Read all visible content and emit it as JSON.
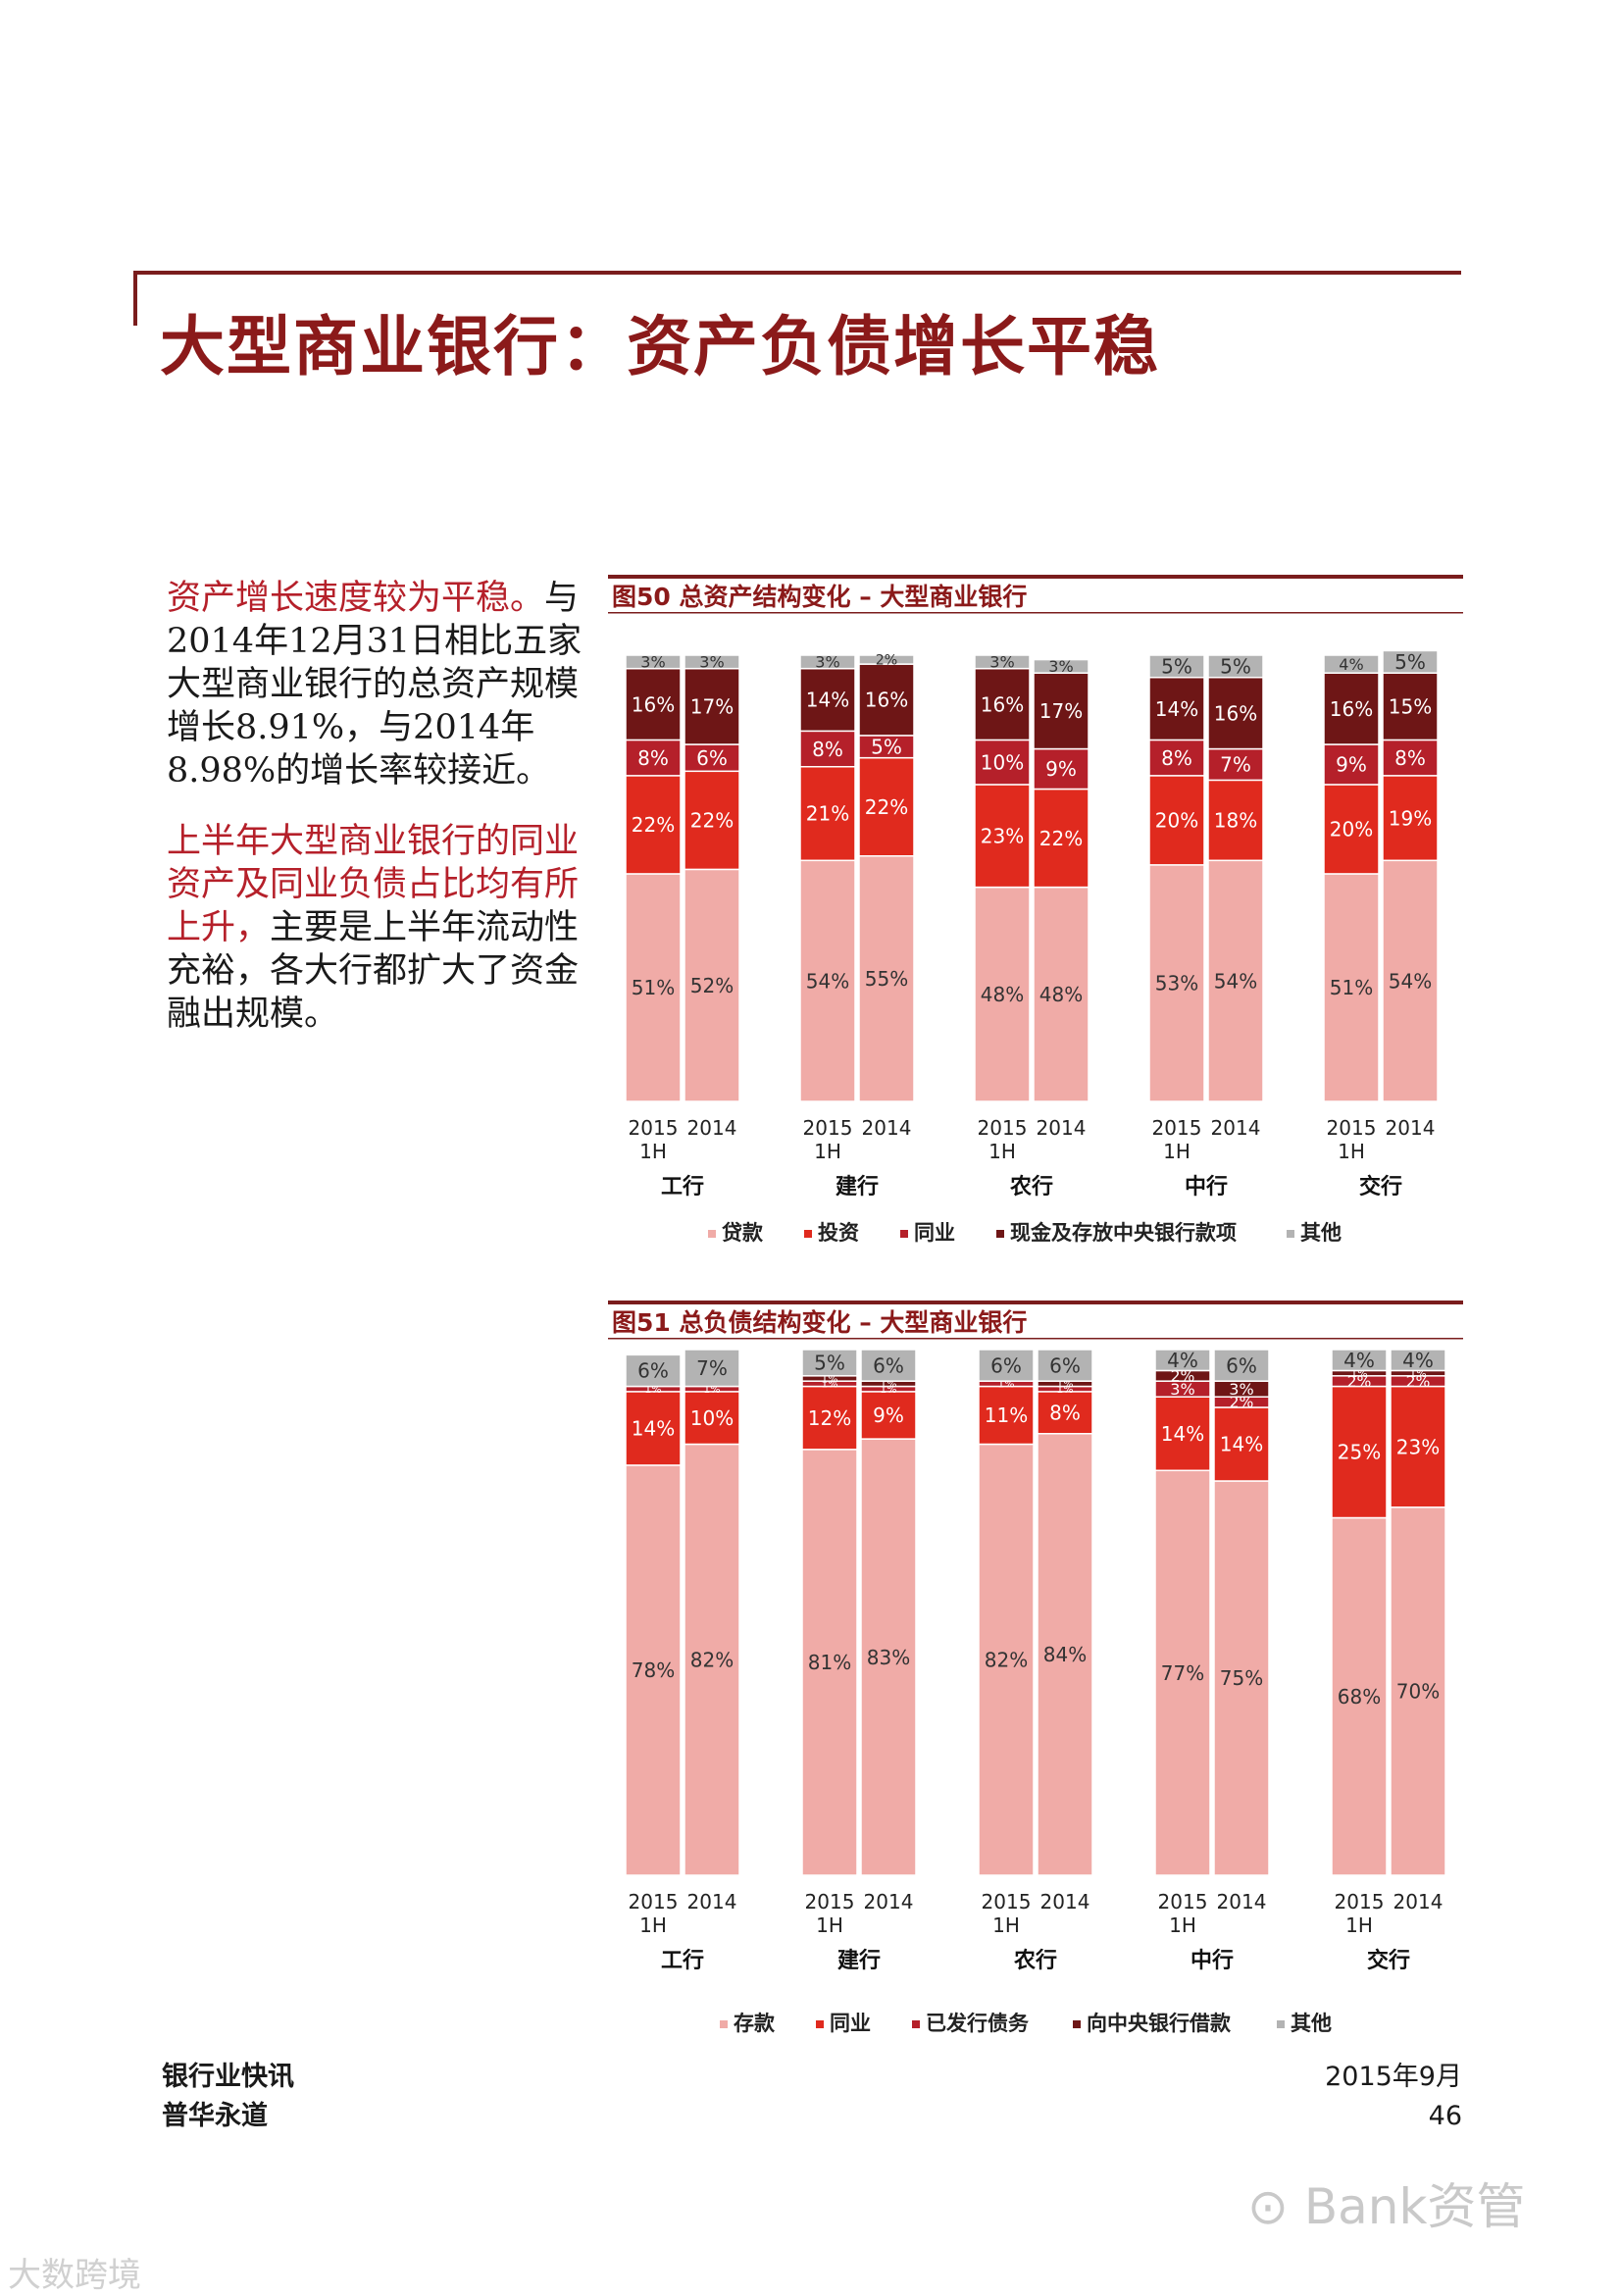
{
  "page_title": "大型商业银行：资产负债增长平稳",
  "side_text": {
    "p1_highlight": "资产增长速度较为平稳。",
    "p1_body": "与2014年12月31日相比五家大型商业银行的总资产规模增长8.91%，与2014年8.98%的增长率较接近。",
    "p2_highlight": "上半年大型商业银行的同业资产及同业负债占比均有所上升，",
    "p2_body": "主要是上半年流动性充裕，各大行都扩大了资金融出规模。"
  },
  "footer": {
    "left_line1": "银行业快讯",
    "left_line2": "普华永道",
    "date": "2015年9月",
    "page_number": "46"
  },
  "watermarks": {
    "right": "Bank资管",
    "left": "大数跨境"
  },
  "colors": {
    "title_red": "#8b1a1a",
    "rule": "#7a1d1d",
    "segment_light": "#f0aba7",
    "segment_red": "#e02a1e",
    "segment_crimson": "#b5202a",
    "segment_dark": "#6e1616",
    "segment_gray": "#b3b3b3"
  },
  "chart_data": [
    {
      "type": "bar",
      "stacked": true,
      "title": "图50  总资产结构变化 – 大型商业银行",
      "groups": [
        "工行",
        "建行",
        "农行",
        "中行",
        "交行"
      ],
      "x_labels": [
        "2015\n1H",
        "2014"
      ],
      "series": [
        {
          "name": "贷款",
          "color": "#f0aba7",
          "values": [
            [
              51,
              52
            ],
            [
              54,
              55
            ],
            [
              48,
              48
            ],
            [
              53,
              54
            ],
            [
              51,
              54
            ]
          ]
        },
        {
          "name": "投资",
          "color": "#e02a1e",
          "values": [
            [
              22,
              22
            ],
            [
              21,
              22
            ],
            [
              23,
              22
            ],
            [
              20,
              18
            ],
            [
              20,
              19
            ]
          ]
        },
        {
          "name": "同业",
          "color": "#b5202a",
          "values": [
            [
              8,
              6
            ],
            [
              8,
              5
            ],
            [
              10,
              9
            ],
            [
              8,
              7
            ],
            [
              9,
              8
            ]
          ]
        },
        {
          "name": "现金及存放中央银行款项",
          "color": "#6e1616",
          "values": [
            [
              16,
              17
            ],
            [
              14,
              16
            ],
            [
              16,
              17
            ],
            [
              14,
              16
            ],
            [
              16,
              15
            ]
          ]
        },
        {
          "name": "其他",
          "color": "#b3b3b3",
          "values": [
            [
              3,
              3
            ],
            [
              3,
              2
            ],
            [
              3,
              3
            ],
            [
              5,
              5
            ],
            [
              4,
              5
            ]
          ]
        }
      ],
      "labels": [
        [
          [
            "51%",
            "22%",
            "8%",
            "16%",
            "3%"
          ],
          [
            "52%",
            "22%",
            "6%",
            "17%",
            "3%"
          ]
        ],
        [
          [
            "54%",
            "21%",
            "8%",
            "14%",
            "3%"
          ],
          [
            "55%",
            "22%",
            "5%",
            "16%",
            "2%"
          ]
        ],
        [
          [
            "48%",
            "23%",
            "10%",
            "16%",
            "3%"
          ],
          [
            "48%",
            "22%",
            "9%",
            "17%",
            "3%"
          ]
        ],
        [
          [
            "53%",
            "20%",
            "8%",
            "14%",
            "5%"
          ],
          [
            "54%",
            "18%",
            "7%",
            "16%",
            "5%"
          ]
        ],
        [
          [
            "51%",
            "20%",
            "9%",
            "16%",
            "4%"
          ],
          [
            "54%",
            "19%",
            "8%",
            "15%",
            "5%"
          ]
        ]
      ],
      "ylim": [
        0,
        100
      ],
      "legend_position": "bottom"
    },
    {
      "type": "bar",
      "stacked": true,
      "title": "图51  总负债结构变化 – 大型商业银行",
      "groups": [
        "工行",
        "建行",
        "农行",
        "中行",
        "交行"
      ],
      "x_labels": [
        "2015\n1H",
        "2014"
      ],
      "series": [
        {
          "name": "存款",
          "color": "#f0aba7",
          "values": [
            [
              78,
              82
            ],
            [
              81,
              83
            ],
            [
              82,
              84
            ],
            [
              77,
              75
            ],
            [
              68,
              70
            ]
          ]
        },
        {
          "name": "同业",
          "color": "#e02a1e",
          "values": [
            [
              14,
              10
            ],
            [
              12,
              9
            ],
            [
              11,
              8
            ],
            [
              14,
              14
            ],
            [
              25,
              23
            ]
          ]
        },
        {
          "name": "已发行债务",
          "color": "#b5202a",
          "values": [
            [
              1,
              1
            ],
            [
              1,
              1
            ],
            [
              1,
              1
            ],
            [
              3,
              2
            ],
            [
              2,
              2
            ]
          ]
        },
        {
          "name": "向中央银行借款",
          "color": "#6e1616",
          "values": [
            [
              0,
              0
            ],
            [
              1,
              1
            ],
            [
              0,
              1
            ],
            [
              2,
              3
            ],
            [
              1,
              1
            ]
          ]
        },
        {
          "name": "其他",
          "color": "#b3b3b3",
          "values": [
            [
              6,
              7
            ],
            [
              5,
              6
            ],
            [
              6,
              6
            ],
            [
              4,
              6
            ],
            [
              4,
              4
            ]
          ]
        }
      ],
      "labels": [
        [
          [
            "78%",
            "14%",
            "1%",
            "",
            "6%"
          ],
          [
            "82%",
            "10%",
            "1%",
            "",
            "7%"
          ]
        ],
        [
          [
            "81%",
            "12%",
            "1%",
            "1%",
            "5%"
          ],
          [
            "83%",
            "9%",
            "1%",
            "1%",
            "6%"
          ]
        ],
        [
          [
            "82%",
            "11%",
            "1%",
            "",
            "6%"
          ],
          [
            "84%",
            "8%",
            "1%",
            "1%",
            "6%"
          ]
        ],
        [
          [
            "77%",
            "14%",
            "3%",
            "2%",
            "4%"
          ],
          [
            "75%",
            "14%",
            "2%",
            "3%",
            "6%"
          ]
        ],
        [
          [
            "68%",
            "25%",
            "2%",
            "1%",
            "4%"
          ],
          [
            "70%",
            "23%",
            "2%",
            "1%",
            "4%"
          ]
        ]
      ],
      "ylim": [
        0,
        100
      ],
      "legend_position": "bottom"
    }
  ]
}
